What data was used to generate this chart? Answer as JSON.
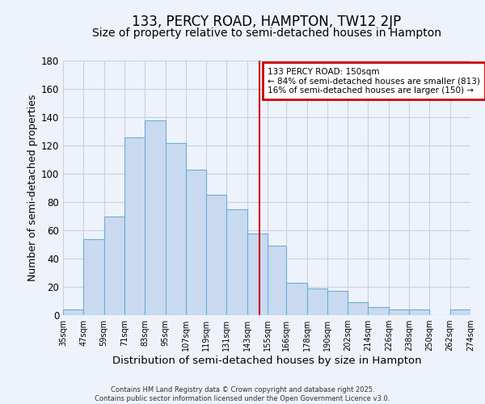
{
  "title": "133, PERCY ROAD, HAMPTON, TW12 2JP",
  "subtitle": "Size of property relative to semi-detached houses in Hampton",
  "xlabel": "Distribution of semi-detached houses by size in Hampton",
  "ylabel": "Number of semi-detached properties",
  "bin_edges": [
    35,
    47,
    59,
    71,
    83,
    95,
    107,
    119,
    131,
    143,
    155,
    166,
    178,
    190,
    202,
    214,
    226,
    238,
    250,
    262,
    274
  ],
  "bin_counts": [
    4,
    54,
    70,
    126,
    138,
    122,
    103,
    85,
    75,
    58,
    49,
    23,
    19,
    17,
    9,
    6,
    4,
    4,
    0,
    4
  ],
  "tick_labels": [
    "35sqm",
    "47sqm",
    "59sqm",
    "71sqm",
    "83sqm",
    "95sqm",
    "107sqm",
    "119sqm",
    "131sqm",
    "143sqm",
    "155sqm",
    "166sqm",
    "178sqm",
    "190sqm",
    "202sqm",
    "214sqm",
    "226sqm",
    "238sqm",
    "250sqm",
    "262sqm",
    "274sqm"
  ],
  "bar_facecolor": "#c9daf0",
  "bar_edgecolor": "#6baed6",
  "vline_x": 150,
  "vline_color": "#cc0000",
  "ylim": [
    0,
    180
  ],
  "yticks": [
    0,
    20,
    40,
    60,
    80,
    100,
    120,
    140,
    160,
    180
  ],
  "annotation_title": "133 PERCY ROAD: 150sqm",
  "annotation_line1": "← 84% of semi-detached houses are smaller (813)",
  "annotation_line2": "16% of semi-detached houses are larger (150) →",
  "annotation_box_color": "#cc0000",
  "background_color": "#eef2fb",
  "grid_color": "#c8d0e0",
  "footer1": "Contains HM Land Registry data © Crown copyright and database right 2025.",
  "footer2": "Contains public sector information licensed under the Open Government Licence v3.0.",
  "title_fontsize": 12,
  "subtitle_fontsize": 10,
  "xlabel_fontsize": 9.5,
  "ylabel_fontsize": 9
}
